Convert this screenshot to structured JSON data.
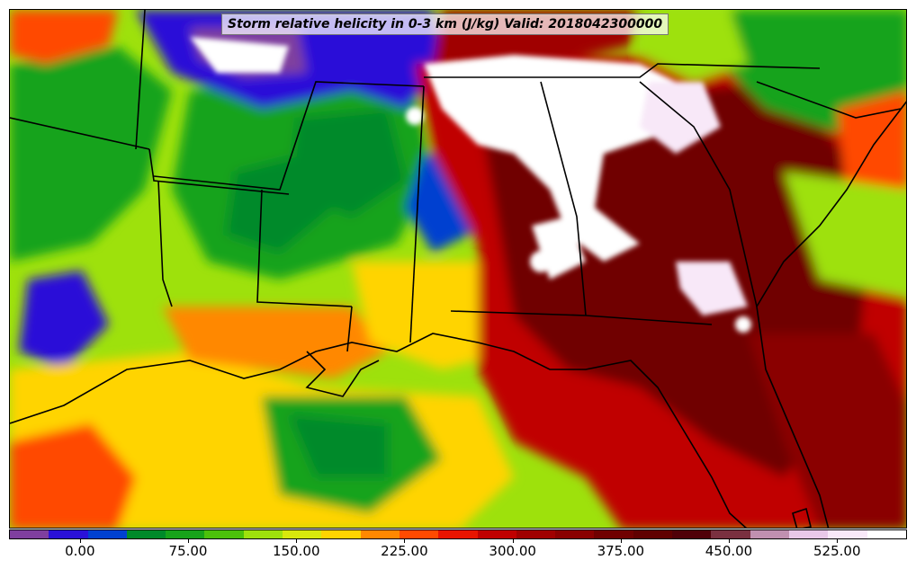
{
  "title": "Storm relative helicity in 0-3 km (J/kg) Valid: 2018042300000",
  "colorbar": {
    "colors": [
      "#7f3f9f",
      "#2a10d8",
      "#0040d0",
      "#008a2a",
      "#17a31a",
      "#4cc10a",
      "#9ee10c",
      "#d8e80c",
      "#ffd400",
      "#ff8800",
      "#ff4a00",
      "#e81400",
      "#c00000",
      "#a00000",
      "#8a0000",
      "#700000",
      "#600000",
      "#500008",
      "#7a3040",
      "#c090b0",
      "#e8c8e8",
      "#f8e8f8",
      "#ffffff"
    ],
    "ticks": [
      {
        "label": "0.00",
        "frac": 0.079
      },
      {
        "label": "75.00",
        "frac": 0.1994
      },
      {
        "label": "150.00",
        "frac": 0.3199
      },
      {
        "label": "225.00",
        "frac": 0.4403
      },
      {
        "label": "300.00",
        "frac": 0.5608
      },
      {
        "label": "375.00",
        "frac": 0.6812
      },
      {
        "label": "450.00",
        "frac": 0.8016
      },
      {
        "label": "525.00",
        "frac": 0.9221
      }
    ]
  }
}
